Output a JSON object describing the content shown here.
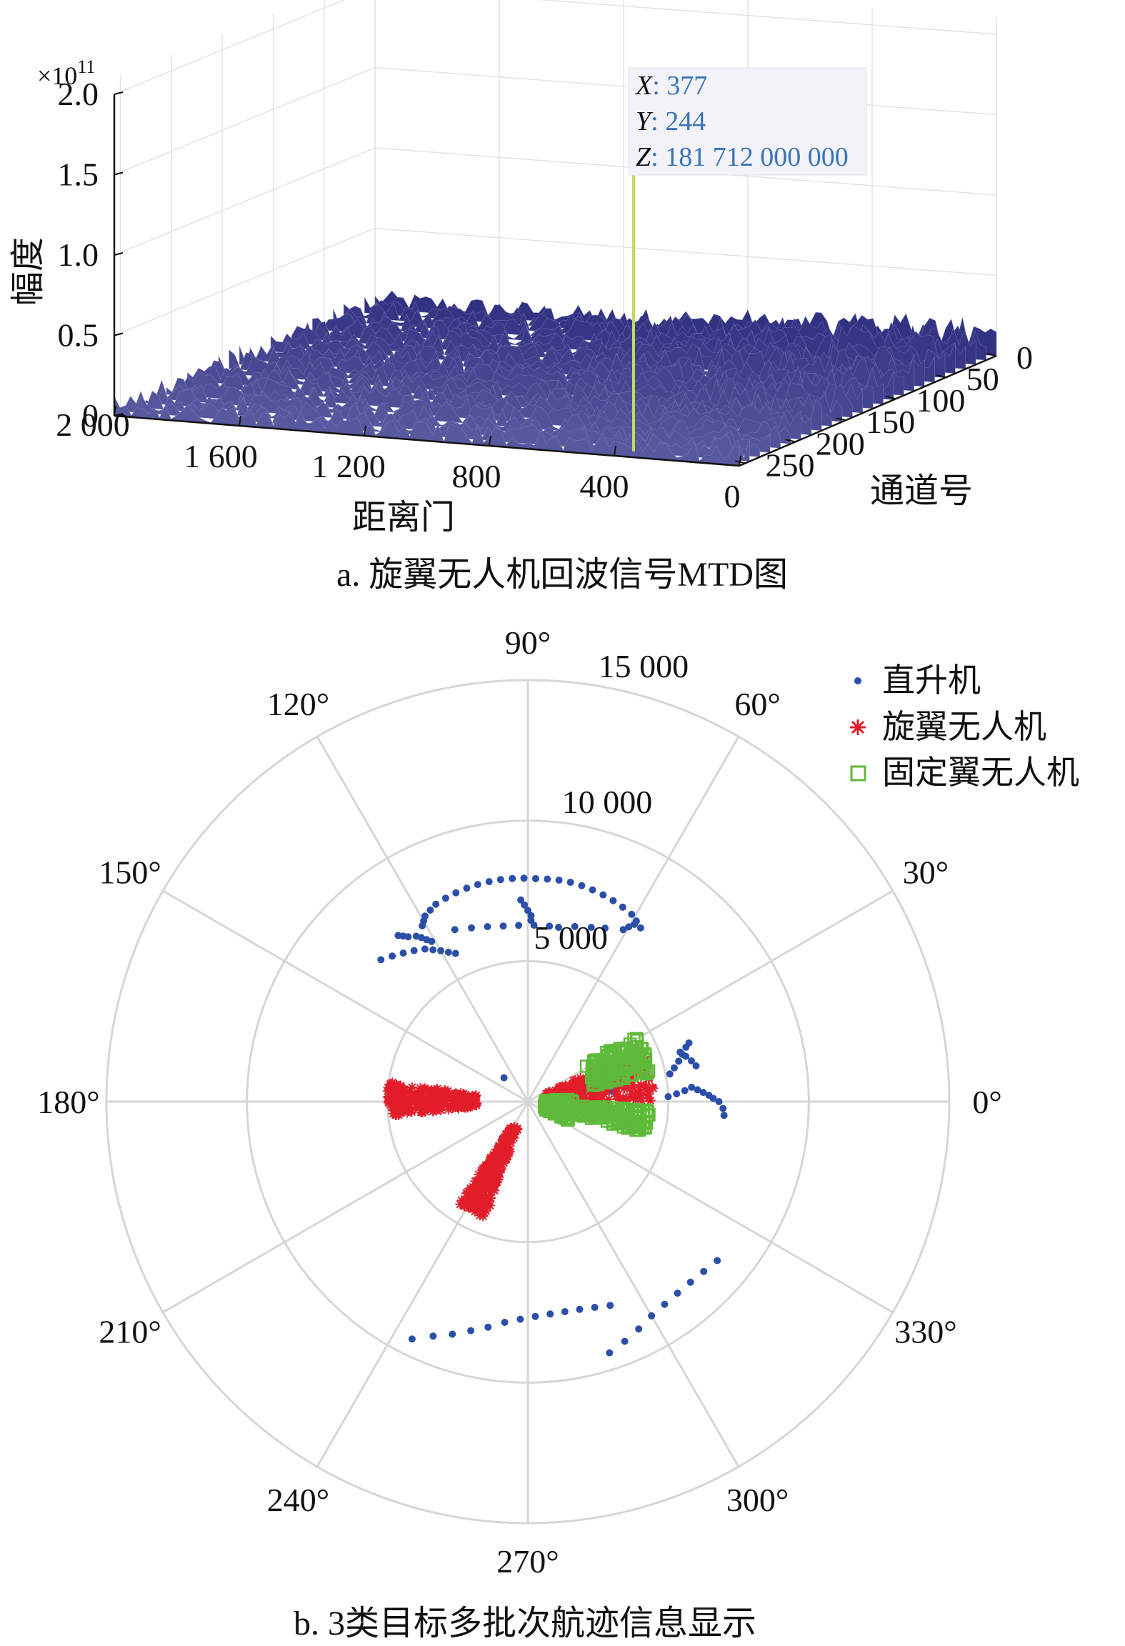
{
  "chart_data": [
    {
      "type": "surface",
      "caption": "a. 旋翼无人机回波信号MTD图",
      "xlabel": "距离门",
      "ylabel": "通道号",
      "zlabel": "幅度",
      "z_exponent": "×10",
      "z_exponent_power": "11",
      "x_ticks": [
        "2 000",
        "1 600",
        "1 200",
        "800",
        "400",
        "0"
      ],
      "y_ticks": [
        "0",
        "50",
        "100",
        "150",
        "200",
        "250"
      ],
      "z_ticks": [
        "2.0",
        "1.5",
        "1.0",
        "0.5",
        "0"
      ],
      "xlim": [
        0,
        2000
      ],
      "ylim": [
        0,
        256
      ],
      "zlim": [
        0,
        200000000000.0
      ],
      "surface_color": "#3f3f9a",
      "peak": {
        "x": 377,
        "y": 244,
        "z": 181712000000
      },
      "datatip": {
        "x_key": "X",
        "x_val": "377",
        "y_key": "Y",
        "y_val": "244",
        "z_key": "Z",
        "z_val": "181 712 000 000"
      }
    },
    {
      "type": "scatter",
      "projection": "polar",
      "caption": "b. 3类目标多批次航迹信息显示",
      "rlim": [
        0,
        15000
      ],
      "r_ticks": [
        "5 000",
        "10 000",
        "15 000"
      ],
      "theta_ticks": [
        "0°",
        "30°",
        "60°",
        "90°",
        "120°",
        "150°",
        "180°",
        "210°",
        "240°",
        "270°",
        "300°",
        "330°"
      ],
      "legend_position": "top-right",
      "series": [
        {
          "name": "直升机",
          "color": "#2b4fa8",
          "marker": "dot",
          "tracks": [
            [
              [
                121,
                7300
              ],
              [
                120,
                7420
              ],
              [
                119,
                7550
              ],
              [
                117,
                7650
              ],
              [
                115,
                7750
              ],
              [
                112,
                7810
              ],
              [
                109,
                7860
              ],
              [
                106,
                7900
              ],
              [
                103,
                7930
              ],
              [
                100,
                7950
              ],
              [
                97,
                7960
              ],
              [
                94,
                7960
              ],
              [
                91,
                7950
              ],
              [
                88,
                7940
              ],
              [
                85,
                7950
              ],
              [
                82,
                7960
              ],
              [
                79,
                7950
              ],
              [
                76,
                7920
              ],
              [
                73,
                7880
              ],
              [
                70,
                7830
              ],
              [
                67,
                7770
              ],
              [
                64,
                7700
              ],
              [
                61,
                7620
              ],
              [
                59,
                7500
              ],
              [
                57,
                7370
              ]
            ],
            [
              [
                136,
                7270
              ],
              [
                133,
                7080
              ],
              [
                130,
                6900
              ],
              [
                127,
                6730
              ],
              [
                124,
                6550
              ],
              [
                122,
                6370
              ],
              [
                120,
                6200
              ],
              [
                118,
                6020
              ],
              [
                116,
                5870
              ]
            ],
            [
              [
                128,
                7500
              ],
              [
                127,
                7380
              ],
              [
                126,
                7250
              ],
              [
                124,
                7100
              ],
              [
                123,
                6960
              ],
              [
                122,
                6800
              ],
              [
                121,
                6650
              ]
            ],
            [
              [
                113,
                6650
              ],
              [
                108,
                6500
              ],
              [
                103,
                6390
              ],
              [
                98,
                6310
              ],
              [
                93,
                6280
              ],
              [
                88,
                6280
              ],
              [
                83,
                6290
              ]
            ],
            [
              [
                92,
                7180
              ],
              [
                91,
                7000
              ],
              [
                90,
                6800
              ],
              [
                89,
                6620
              ],
              [
                89,
                6450
              ]
            ],
            [
              [
                80,
                6300
              ],
              [
                75,
                6450
              ],
              [
                70,
                6600
              ],
              [
                66,
                6760
              ]
            ],
            [
              [
                61,
                7000
              ],
              [
                60,
                7180
              ],
              [
                59,
                7360
              ]
            ],
            [
              [
                11,
                5150
              ],
              [
                13,
                5350
              ],
              [
                15,
                5560
              ],
              [
                17,
                5750
              ],
              [
                19,
                5950
              ],
              [
                20,
                6100
              ]
            ],
            [
              [
                2,
                5000
              ],
              [
                3,
                5300
              ],
              [
                4,
                5600
              ],
              [
                5,
                5850
              ],
              [
                4,
                6050
              ],
              [
                3,
                6250
              ],
              [
                2,
                6450
              ],
              [
                1,
                6600
              ],
              [
                0,
                6800
              ],
              [
                -2,
                6950
              ],
              [
                -4,
                7000
              ]
            ],
            [
              [
                12,
                6120
              ],
              [
                14,
                6000
              ],
              [
                16,
                5850
              ],
              [
                18,
                5700
              ]
            ],
            [
              [
                244,
                9400
              ],
              [
                248,
                9000
              ],
              [
                252,
                8700
              ],
              [
                256,
                8400
              ],
              [
                260,
                8150
              ],
              [
                264,
                7900
              ],
              [
                268,
                7750
              ],
              [
                272,
                7650
              ],
              [
                276,
                7600
              ],
              [
                280,
                7590
              ],
              [
                284,
                7620
              ],
              [
                288,
                7700
              ],
              [
                292,
                7820
              ]
            ],
            [
              [
                288,
                9400
              ],
              [
                292,
                9200
              ],
              [
                296,
                9000
              ],
              [
                300,
                8800
              ],
              [
                304,
                8700
              ],
              [
                308,
                8650
              ],
              [
                312,
                8650
              ],
              [
                316,
                8700
              ],
              [
                320,
                8800
              ]
            ],
            [
              [
                7,
                3000
              ]
            ],
            [
              [
                135,
                1200
              ]
            ]
          ]
        },
        {
          "name": "旋翼无人机",
          "color": "#e21d2a",
          "marker": "star",
          "clusters": [
            {
              "theta": [
                172,
                186
              ],
              "r": [
                1800,
                5000
              ]
            },
            {
              "theta": [
                236,
                250
              ],
              "r": [
                1000,
                4400
              ]
            },
            {
              "theta": [
                0,
                25
              ],
              "r": [
                700,
                4500
              ]
            }
          ]
        },
        {
          "name": "固定翼无人机",
          "color": "#5fba3a",
          "marker": "square",
          "clusters": [
            {
              "theta": [
                13,
                32
              ],
              "r": [
                2400,
                4500
              ]
            },
            {
              "theta": [
                345,
                356
              ],
              "r": [
                1800,
                4400
              ]
            },
            {
              "theta": [
                -25,
                5
              ],
              "r": [
                600,
                1600
              ]
            }
          ]
        }
      ]
    }
  ]
}
